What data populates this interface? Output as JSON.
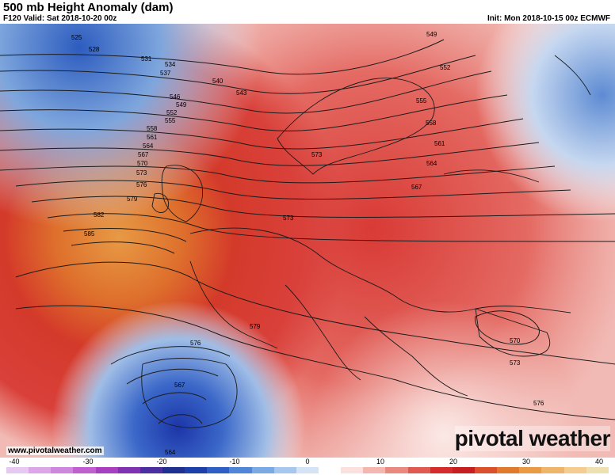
{
  "header": {
    "title": "500 mb Height Anomaly (dam)",
    "valid": "F120 Valid: Sat 2018-10-20 00z",
    "init": "Init: Mon 2018-10-15 00z ECMWF"
  },
  "map": {
    "contour_labels": [
      "525",
      "528",
      "531",
      "534",
      "537",
      "540",
      "543",
      "546",
      "549",
      "552",
      "555",
      "558",
      "561",
      "564",
      "567",
      "570",
      "573",
      "576",
      "579",
      "582",
      "585",
      "549",
      "552",
      "555",
      "558",
      "561",
      "564",
      "567",
      "573",
      "573",
      "576",
      "579",
      "570",
      "573",
      "576",
      "567",
      "564"
    ],
    "colors": {
      "positive_anomaly": "#d62b2b",
      "strong_positive": "#e07a2e",
      "negative_anomaly": "#2d5fc4"
    }
  },
  "footer": {
    "website": "www.pivotalweather.com",
    "logo": "pivotal weather"
  },
  "colorbar": {
    "ticks": [
      "-40",
      "-30",
      "-20",
      "-10",
      "0",
      "10",
      "20",
      "30",
      "40"
    ]
  }
}
